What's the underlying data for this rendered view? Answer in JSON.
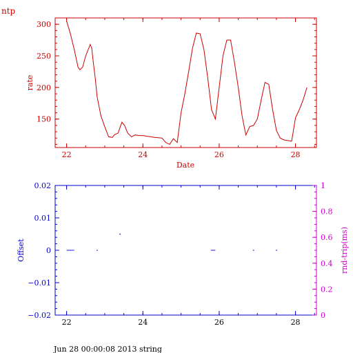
{
  "page_title": "ntp",
  "footer": "Jun 28 00:00:08 2013 string",
  "colors": {
    "top_chart": "#cc0000",
    "bottom_axes": "#0000cc",
    "rtt_axis": "#cc00cc",
    "text": "#000000"
  },
  "chart_data": [
    {
      "type": "line",
      "xlabel": "Date",
      "ylabel": "rate",
      "xlim": [
        21.7,
        28.55
      ],
      "ylim": [
        105,
        310
      ],
      "xticks": [
        22,
        24,
        26,
        28
      ],
      "xtick_labels": [
        "22",
        "24",
        "26",
        "28"
      ],
      "yticks": [
        150,
        200,
        250,
        300
      ],
      "ytick_labels": [
        "150",
        "200",
        "250",
        "300"
      ],
      "grid": false,
      "series": [
        {
          "x": [
            22.0,
            22.05,
            22.1,
            22.2,
            22.3,
            22.35,
            22.42,
            22.5,
            22.58,
            22.62,
            22.66,
            22.7,
            22.75,
            22.8,
            22.9,
            23.0,
            23.1,
            23.2,
            23.25,
            23.35,
            23.45,
            23.52,
            23.6,
            23.7,
            23.8,
            23.9,
            24.0,
            24.2,
            24.3,
            24.5,
            24.6,
            24.7,
            24.8,
            24.9,
            25.0,
            25.1,
            25.2,
            25.3,
            25.4,
            25.5,
            25.6,
            25.7,
            25.8,
            25.9,
            26.0,
            26.1,
            26.2,
            26.3,
            26.4,
            26.5,
            26.6,
            26.7,
            26.8,
            26.9,
            27.0,
            27.1,
            27.2,
            27.3,
            27.4,
            27.5,
            27.6,
            27.7,
            27.8,
            27.9,
            28.0,
            28.1,
            28.2,
            28.3
          ],
          "y": [
            305,
            295,
            285,
            260,
            232,
            228,
            232,
            250,
            262,
            268,
            262,
            240,
            215,
            185,
            155,
            138,
            122,
            121,
            125,
            128,
            145,
            140,
            128,
            122,
            125,
            124,
            124,
            122,
            121,
            120,
            113,
            110,
            119,
            113,
            160,
            190,
            225,
            262,
            286,
            285,
            260,
            215,
            165,
            150,
            200,
            250,
            275,
            275,
            240,
            200,
            155,
            125,
            138,
            140,
            150,
            180,
            208,
            205,
            165,
            132,
            120,
            117,
            116,
            115,
            152,
            165,
            180,
            200
          ]
        }
      ]
    },
    {
      "type": "scatter",
      "xlabel": "",
      "ylabel": "Offset",
      "y2label": "rnd-trip(ms)",
      "xlim": [
        21.7,
        28.55
      ],
      "ylim": [
        -0.02,
        0.02
      ],
      "y2lim": [
        0,
        1
      ],
      "xticks": [
        22,
        24,
        26,
        28
      ],
      "xtick_labels": [
        "22",
        "24",
        "26",
        "28"
      ],
      "yticks": [
        -0.02,
        -0.01,
        0,
        0.01,
        0.02
      ],
      "ytick_labels": [
        "−0.02",
        "−0.01",
        "0",
        "0.01",
        "0.02"
      ],
      "y2ticks": [
        0,
        0.2,
        0.4,
        0.6,
        0.8,
        1
      ],
      "y2tick_labels": [
        "0",
        "0.2",
        "0.4",
        "0.6",
        "0.8",
        "1"
      ],
      "grid": false,
      "series": [
        {
          "x": [
            22.02,
            22.06,
            22.1,
            22.14,
            22.18,
            22.8,
            23.4,
            25.8,
            25.84,
            25.88,
            26.9,
            27.5
          ],
          "y": [
            0,
            0,
            0,
            0,
            0,
            0,
            0.005,
            0,
            0,
            0,
            0,
            0
          ]
        }
      ]
    }
  ]
}
